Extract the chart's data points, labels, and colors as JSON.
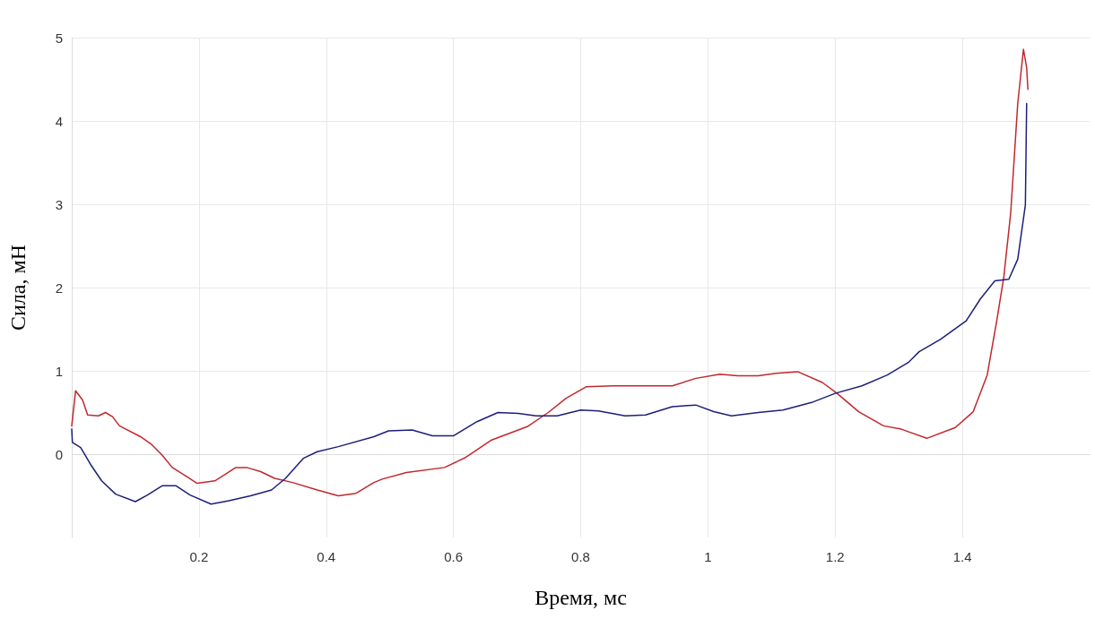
{
  "chart_data": {
    "type": "line",
    "xlabel": "Время, мс",
    "ylabel": "Сила, мН",
    "xlim": [
      0,
      1.6
    ],
    "xticks": [
      0.2,
      0.4,
      0.6,
      0.8,
      1,
      1.2,
      1.4
    ],
    "ylim": [
      -1,
      5
    ],
    "yticks": [
      0,
      1,
      2,
      3,
      4,
      5
    ],
    "grid": true,
    "legend": false,
    "marker": "none",
    "line_style": "solid",
    "series": [
      {
        "color": "#c0282d",
        "x": [
          0,
          0.006,
          0.017,
          0.025,
          0.042,
          0.053,
          0.064,
          0.075,
          0.108,
          0.125,
          0.142,
          0.158,
          0.181,
          0.197,
          0.225,
          0.258,
          0.275,
          0.297,
          0.319,
          0.347,
          0.386,
          0.419,
          0.447,
          0.475,
          0.488,
          0.526,
          0.586,
          0.619,
          0.66,
          0.716,
          0.749,
          0.777,
          0.809,
          0.851,
          0.944,
          0.981,
          1.019,
          1.047,
          1.079,
          1.107,
          1.141,
          1.18,
          1.203,
          1.237,
          1.276,
          1.304,
          1.344,
          1.389,
          1.417,
          1.439,
          1.454,
          1.465,
          1.476,
          1.487,
          1.496,
          1.501,
          1.503
        ],
        "values": [
          0.34,
          0.76,
          0.65,
          0.47,
          0.46,
          0.5,
          0.45,
          0.34,
          0.21,
          0.12,
          -0.01,
          -0.16,
          -0.27,
          -0.35,
          -0.32,
          -0.16,
          -0.16,
          -0.21,
          -0.29,
          -0.34,
          -0.43,
          -0.5,
          -0.47,
          -0.34,
          -0.3,
          -0.22,
          -0.16,
          -0.04,
          0.17,
          0.33,
          0.5,
          0.67,
          0.81,
          0.82,
          0.82,
          0.91,
          0.96,
          0.94,
          0.94,
          0.97,
          0.99,
          0.86,
          0.73,
          0.51,
          0.34,
          0.3,
          0.19,
          0.32,
          0.51,
          0.95,
          1.6,
          2.12,
          2.9,
          4.21,
          4.86,
          4.64,
          4.38
        ]
      },
      {
        "color": "#1c1f78",
        "x": [
          0,
          0.001,
          0.014,
          0.031,
          0.047,
          0.069,
          0.1,
          0.119,
          0.142,
          0.164,
          0.186,
          0.219,
          0.247,
          0.281,
          0.314,
          0.336,
          0.364,
          0.386,
          0.419,
          0.475,
          0.498,
          0.535,
          0.567,
          0.6,
          0.637,
          0.67,
          0.702,
          0.73,
          0.763,
          0.8,
          0.828,
          0.87,
          0.902,
          0.944,
          0.981,
          1.009,
          1.037,
          1.079,
          1.118,
          1.163,
          1.2,
          1.242,
          1.282,
          1.315,
          1.332,
          1.366,
          1.406,
          1.428,
          1.451,
          1.473,
          1.487,
          1.499,
          1.501
        ],
        "values": [
          0.3,
          0.14,
          0.08,
          -0.14,
          -0.32,
          -0.48,
          -0.57,
          -0.49,
          -0.38,
          -0.38,
          -0.49,
          -0.6,
          -0.56,
          -0.5,
          -0.43,
          -0.29,
          -0.05,
          0.03,
          0.09,
          0.21,
          0.28,
          0.29,
          0.22,
          0.22,
          0.39,
          0.5,
          0.49,
          0.46,
          0.46,
          0.53,
          0.52,
          0.46,
          0.47,
          0.57,
          0.59,
          0.51,
          0.46,
          0.5,
          0.53,
          0.62,
          0.73,
          0.82,
          0.95,
          1.1,
          1.23,
          1.38,
          1.6,
          1.86,
          2.08,
          2.1,
          2.34,
          2.99,
          4.21
        ]
      }
    ]
  }
}
